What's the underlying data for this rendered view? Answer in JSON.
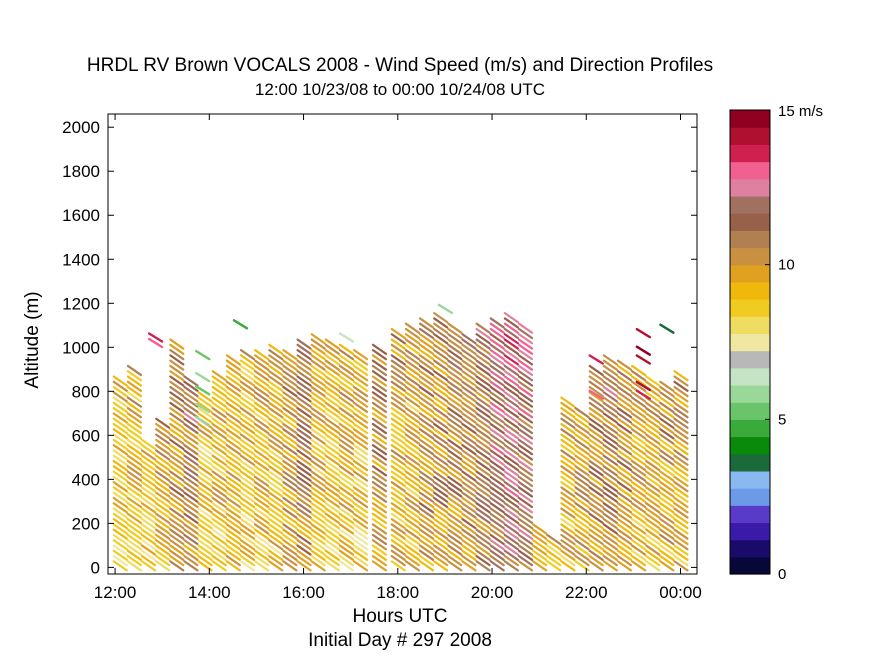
{
  "chart_data": {
    "type": "barbs",
    "title": "HRDL RV Brown VOCALS 2008 - Wind Speed (m/s) and Direction Profiles",
    "subtitle": "12:00 10/23/08 to 00:00 10/24/08  UTC",
    "xlabel": "Hours UTC",
    "xlabel2": "Initial Day # 297  2008",
    "ylabel": "Altitude (m)",
    "xlim": [
      11.85,
      24.35
    ],
    "ylim": [
      -30,
      2060
    ],
    "xticks": [
      {
        "value": 12,
        "label": "12:00"
      },
      {
        "value": 14,
        "label": "14:00"
      },
      {
        "value": 16,
        "label": "16:00"
      },
      {
        "value": 18,
        "label": "18:00"
      },
      {
        "value": 20,
        "label": "20:00"
      },
      {
        "value": 22,
        "label": "22:00"
      },
      {
        "value": 24,
        "label": "00:00"
      }
    ],
    "yticks": [
      {
        "value": 0,
        "label": "0"
      },
      {
        "value": 200,
        "label": "200"
      },
      {
        "value": 400,
        "label": "400"
      },
      {
        "value": 600,
        "label": "600"
      },
      {
        "value": 800,
        "label": "800"
      },
      {
        "value": 1000,
        "label": "1000"
      },
      {
        "value": 1200,
        "label": "1200"
      },
      {
        "value": 1400,
        "label": "1400"
      },
      {
        "value": 1600,
        "label": "1600"
      },
      {
        "value": 1800,
        "label": "1800"
      },
      {
        "value": 2000,
        "label": "2000"
      }
    ],
    "colorbar": {
      "range": [
        0,
        15
      ],
      "ticks": [
        {
          "value": 0,
          "label": "0"
        },
        {
          "value": 5,
          "label": "5"
        },
        {
          "value": 10,
          "label": "10"
        },
        {
          "value": 15,
          "label": "15 m/s"
        }
      ],
      "colors": [
        "#07073a",
        "#1a0a6a",
        "#3a1aa8",
        "#5a3ac8",
        "#6a9ae8",
        "#8ab8f0",
        "#1a6a3a",
        "#0a8a0a",
        "#3aaa3a",
        "#6ac46a",
        "#9ad89a",
        "#c4e4c4",
        "#b8b8b8",
        "#f0e8a0",
        "#f0dc60",
        "#f0cc20",
        "#f0b80a",
        "#e0a020",
        "#c89040",
        "#b08050",
        "#986048",
        "#a07060",
        "#e080a0",
        "#f06090",
        "#d02050",
        "#b01030",
        "#900020"
      ]
    },
    "profiles": [
      {
        "hour": 12.1,
        "top": 840,
        "speed": 8.8,
        "spread": 0.8,
        "note": "mostly yellow"
      },
      {
        "hour": 12.4,
        "top": 900,
        "speed": 9.1
      },
      {
        "hour": 12.7,
        "top": 560,
        "speed": 9.0
      },
      {
        "hour": 13.0,
        "top": 660,
        "speed": 9.6
      },
      {
        "hour": 13.3,
        "top": 1020,
        "speed": 10.2
      },
      {
        "hour": 13.6,
        "top": 860,
        "speed": 10.8
      },
      {
        "hour": 13.9,
        "top": 780,
        "speed": 8.8
      },
      {
        "hour": 14.2,
        "top": 880,
        "speed": 9.2
      },
      {
        "hour": 14.5,
        "top": 940,
        "speed": 9.4
      },
      {
        "hour": 14.8,
        "top": 960,
        "speed": 9.0
      },
      {
        "hour": 15.1,
        "top": 980,
        "speed": 9.2
      },
      {
        "hour": 15.4,
        "top": 1000,
        "speed": 9.3
      },
      {
        "hour": 15.7,
        "top": 960,
        "speed": 10.0
      },
      {
        "hour": 16.0,
        "top": 1020,
        "speed": 10.8
      },
      {
        "hour": 16.3,
        "top": 1040,
        "speed": 9.4
      },
      {
        "hour": 16.6,
        "top": 1020,
        "speed": 9.0
      },
      {
        "hour": 16.9,
        "top": 1000,
        "speed": 9.2
      },
      {
        "hour": 17.2,
        "top": 960,
        "speed": 9.0
      },
      {
        "hour": 17.6,
        "top": 1000,
        "speed": 10.2
      },
      {
        "hour": 18.0,
        "top": 1060,
        "speed": 9.6
      },
      {
        "hour": 18.3,
        "top": 1100,
        "speed": 9.4
      },
      {
        "hour": 18.6,
        "top": 1120,
        "speed": 10.2
      },
      {
        "hour": 18.9,
        "top": 1140,
        "speed": 10.2
      },
      {
        "hour": 19.2,
        "top": 1100,
        "speed": 10.6
      },
      {
        "hour": 19.5,
        "top": 1040,
        "speed": 10.4
      },
      {
        "hour": 19.8,
        "top": 1100,
        "speed": 11.0
      },
      {
        "hour": 20.1,
        "top": 1120,
        "speed": 11.8
      },
      {
        "hour": 20.4,
        "top": 1140,
        "speed": 12.0
      },
      {
        "hour": 20.7,
        "top": 1100,
        "speed": 11.6
      },
      {
        "hour": 21.0,
        "top": 180,
        "speed": 9.0
      },
      {
        "hour": 21.3,
        "top": 140,
        "speed": 9.2
      },
      {
        "hour": 21.6,
        "top": 760,
        "speed": 9.6
      },
      {
        "hour": 21.9,
        "top": 700,
        "speed": 9.8
      },
      {
        "hour": 22.2,
        "top": 900,
        "speed": 10.4
      },
      {
        "hour": 22.5,
        "top": 940,
        "speed": 10.8
      },
      {
        "hour": 22.8,
        "top": 920,
        "speed": 10.2
      },
      {
        "hour": 23.1,
        "top": 900,
        "speed": 9.6
      },
      {
        "hour": 23.4,
        "top": 860,
        "speed": 9.4
      },
      {
        "hour": 23.7,
        "top": 820,
        "speed": 9.8
      },
      {
        "hour": 24.0,
        "top": 880,
        "speed": 9.8
      }
    ],
    "highlights": [
      {
        "hour": 12.85,
        "alt": 1040,
        "speed": 13.4
      },
      {
        "hour": 12.85,
        "alt": 1015,
        "speed": 13.2
      },
      {
        "hour": 13.85,
        "alt": 960,
        "speed": 5.2
      },
      {
        "hour": 13.85,
        "alt": 860,
        "speed": 5.6
      },
      {
        "hour": 13.85,
        "alt": 800,
        "speed": 5.4
      },
      {
        "hour": 13.85,
        "alt": 720,
        "speed": 5.8
      },
      {
        "hour": 13.85,
        "alt": 660,
        "speed": 6.0
      },
      {
        "hour": 14.65,
        "alt": 1100,
        "speed": 4.8
      },
      {
        "hour": 16.9,
        "alt": 1040,
        "speed": 6.6
      },
      {
        "hour": 19.0,
        "alt": 1170,
        "speed": 6.0
      },
      {
        "hour": 22.2,
        "alt": 940,
        "speed": 13.6
      },
      {
        "hour": 22.2,
        "alt": 780,
        "speed": 13.2
      },
      {
        "hour": 23.2,
        "alt": 1060,
        "speed": 14.4
      },
      {
        "hour": 23.2,
        "alt": 980,
        "speed": 14.6
      },
      {
        "hour": 23.2,
        "alt": 940,
        "speed": 14.4
      },
      {
        "hour": 23.2,
        "alt": 820,
        "speed": 14.2
      },
      {
        "hour": 23.2,
        "alt": 780,
        "speed": 13.8
      },
      {
        "hour": 23.7,
        "alt": 1080,
        "speed": 3.6
      }
    ]
  }
}
